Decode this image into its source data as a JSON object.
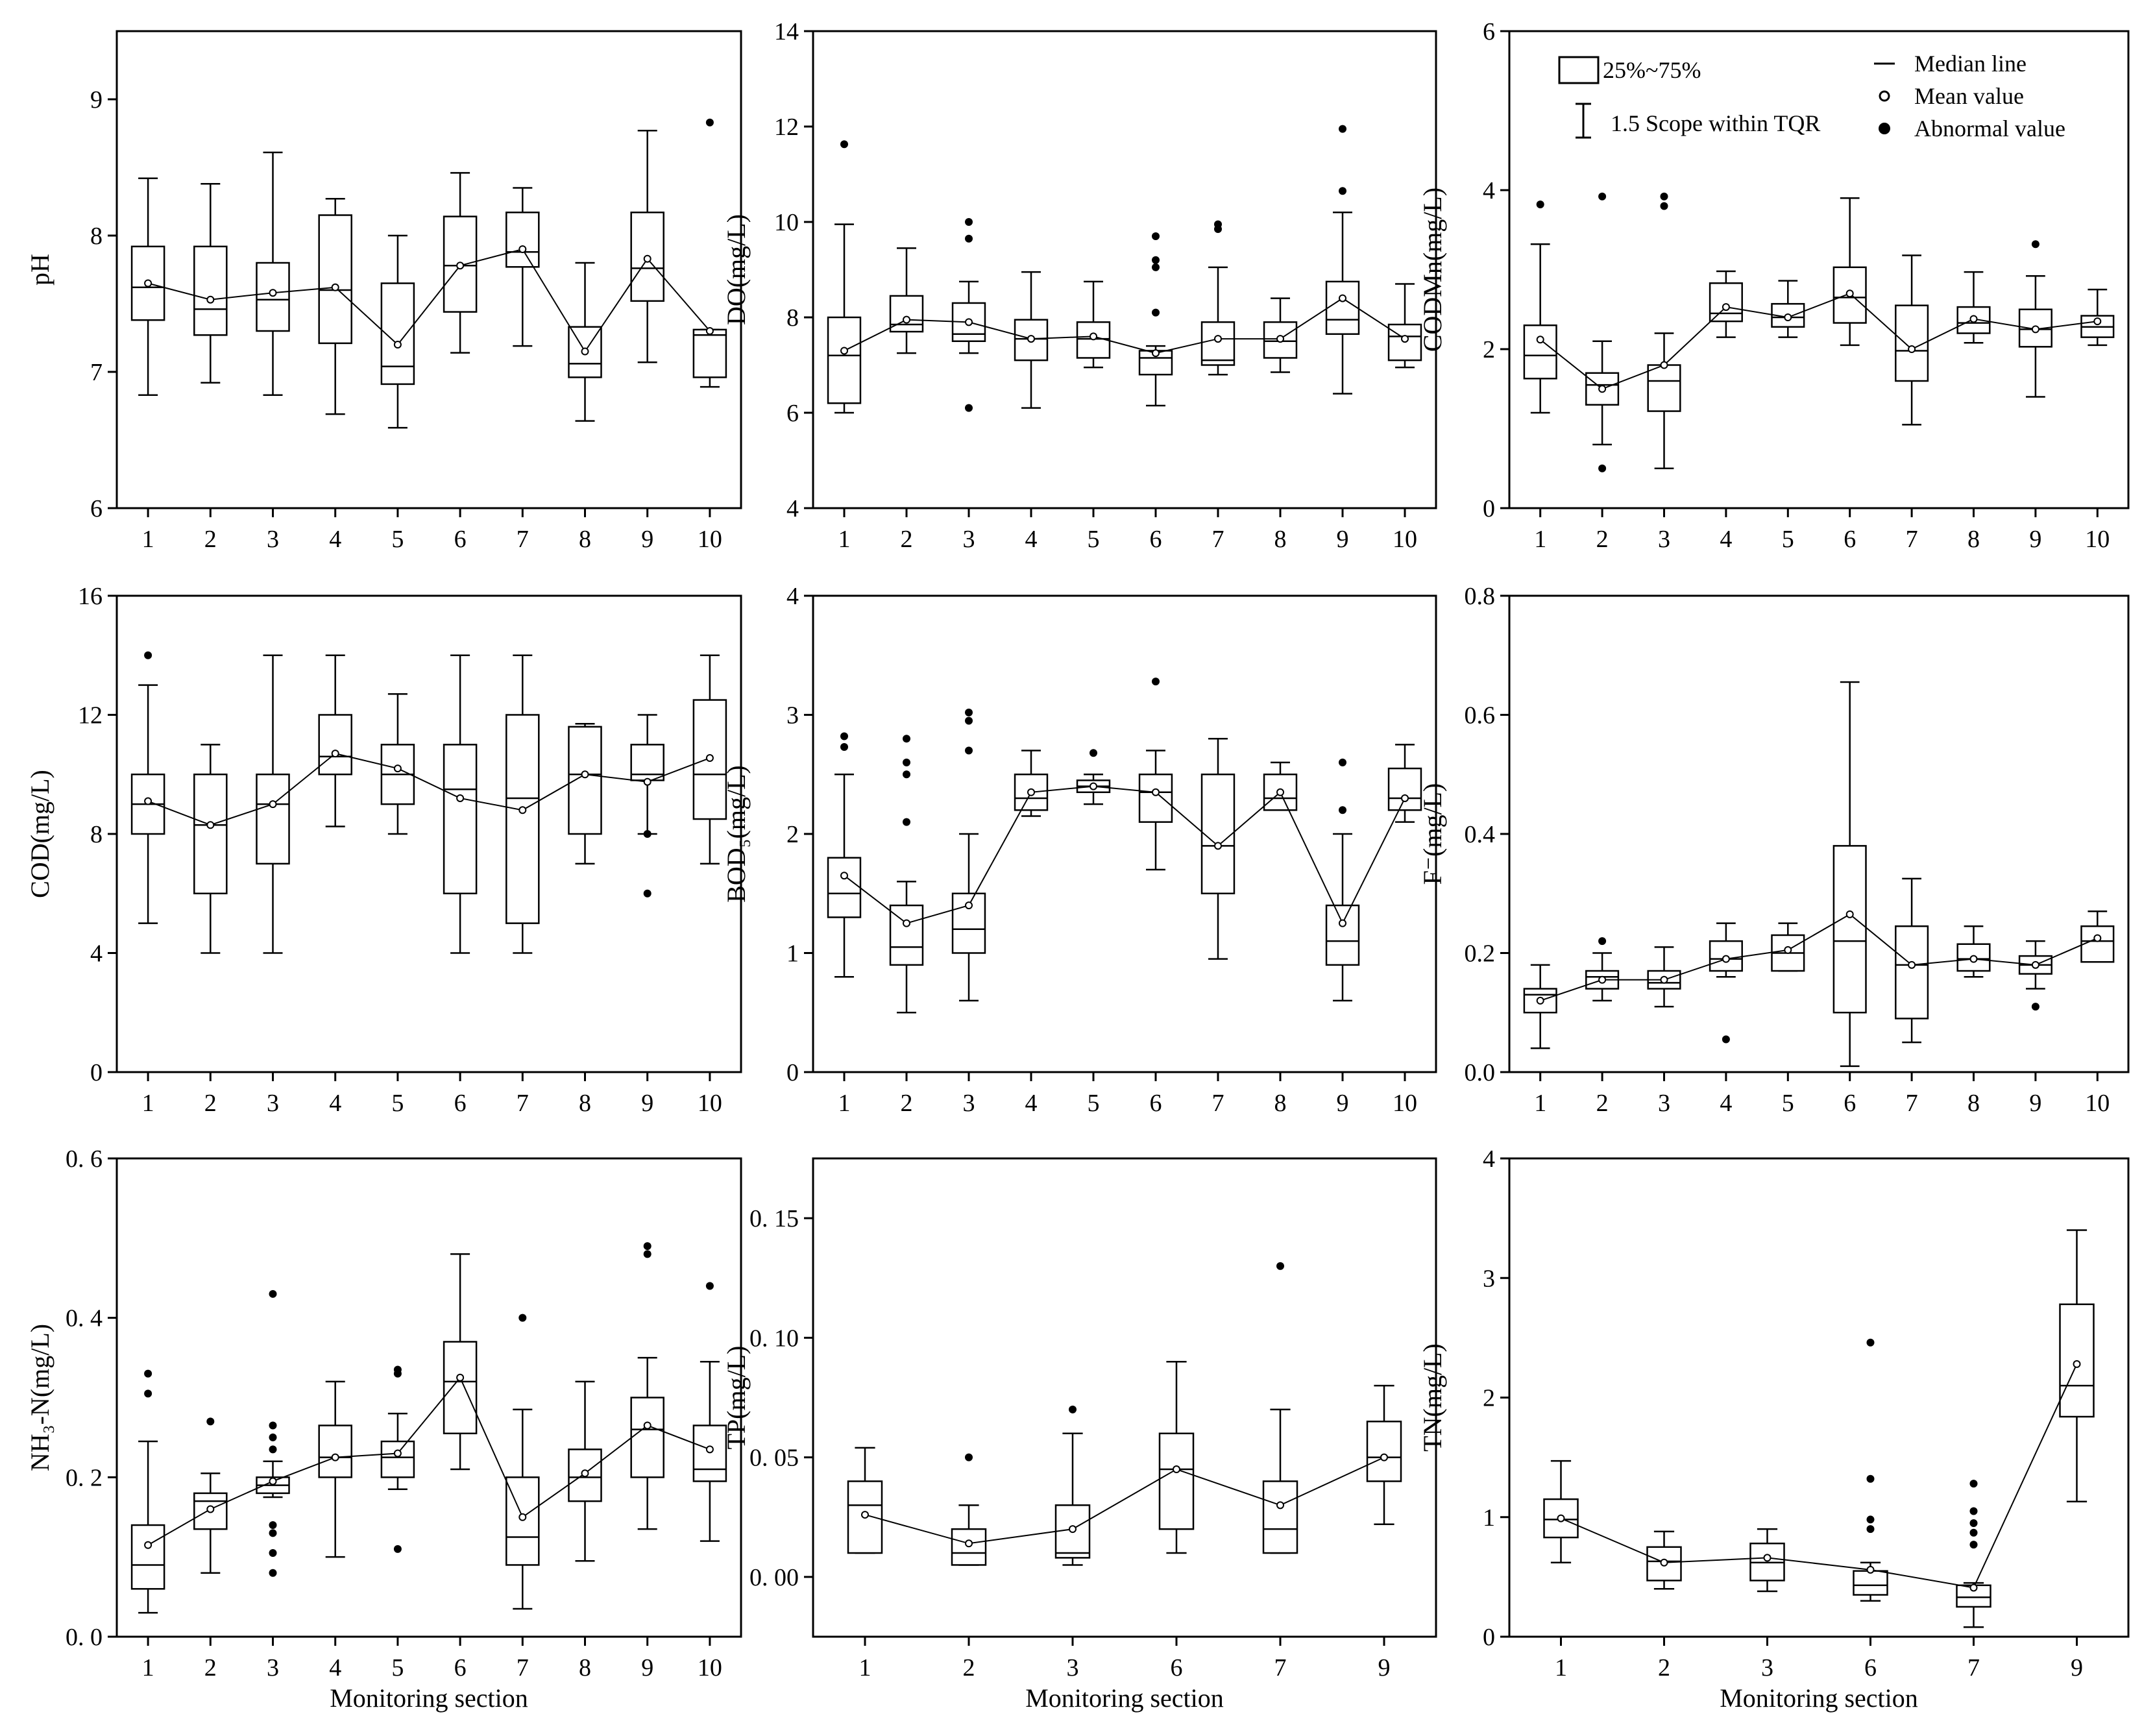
{
  "legend": {
    "box_label": "25%~75%",
    "whisker_label": "1.5 Scope within TQR",
    "median_label": "Median line",
    "mean_label": "Mean value",
    "outlier_label": "Abnormal value"
  },
  "chart_data": [
    {
      "type": "box",
      "ylabel": "pH",
      "xlabel": "",
      "ylim": [
        6,
        9.5
      ],
      "yticks": [
        6,
        7,
        8,
        9
      ],
      "ytick_format": "int",
      "categories": [
        "1",
        "2",
        "3",
        "4",
        "5",
        "6",
        "7",
        "8",
        "9",
        "10"
      ],
      "boxes": [
        {
          "lo": 6.83,
          "q1": 7.38,
          "med": 7.62,
          "q3": 7.92,
          "hi": 8.42,
          "mean": 7.65,
          "out": []
        },
        {
          "lo": 6.92,
          "q1": 7.27,
          "med": 7.46,
          "q3": 7.92,
          "hi": 8.38,
          "mean": 7.53,
          "out": []
        },
        {
          "lo": 6.83,
          "q1": 7.3,
          "med": 7.53,
          "q3": 7.8,
          "hi": 8.61,
          "mean": 7.58,
          "out": []
        },
        {
          "lo": 6.69,
          "q1": 7.21,
          "med": 7.6,
          "q3": 8.15,
          "hi": 8.27,
          "mean": 7.62,
          "out": []
        },
        {
          "lo": 6.59,
          "q1": 6.91,
          "med": 7.04,
          "q3": 7.65,
          "hi": 8.0,
          "mean": 7.2,
          "out": []
        },
        {
          "lo": 7.14,
          "q1": 7.44,
          "med": 7.78,
          "q3": 8.14,
          "hi": 8.46,
          "mean": 7.78,
          "out": []
        },
        {
          "lo": 7.19,
          "q1": 7.77,
          "med": 7.88,
          "q3": 8.17,
          "hi": 8.35,
          "mean": 7.9,
          "out": []
        },
        {
          "lo": 6.64,
          "q1": 6.96,
          "med": 7.06,
          "q3": 7.33,
          "hi": 7.8,
          "mean": 7.15,
          "out": []
        },
        {
          "lo": 7.07,
          "q1": 7.52,
          "med": 7.76,
          "q3": 8.17,
          "hi": 8.77,
          "mean": 7.83,
          "out": []
        },
        {
          "lo": 6.89,
          "q1": 6.96,
          "med": 7.27,
          "q3": 7.31,
          "hi": 7.31,
          "mean": 7.3,
          "out": [
            8.83
          ]
        }
      ]
    },
    {
      "type": "box",
      "ylabel": "DO(mg/L)",
      "xlabel": "",
      "ylim": [
        4,
        14
      ],
      "yticks": [
        4,
        6,
        8,
        10,
        12,
        14
      ],
      "ytick_format": "int",
      "categories": [
        "1",
        "2",
        "3",
        "4",
        "5",
        "6",
        "7",
        "8",
        "9",
        "10"
      ],
      "boxes": [
        {
          "lo": 6.0,
          "q1": 6.2,
          "med": 7.2,
          "q3": 8.0,
          "hi": 9.95,
          "mean": 7.3,
          "out": [
            11.63
          ]
        },
        {
          "lo": 7.25,
          "q1": 7.7,
          "med": 7.85,
          "q3": 8.45,
          "hi": 9.45,
          "mean": 7.95,
          "out": []
        },
        {
          "lo": 7.25,
          "q1": 7.5,
          "med": 7.65,
          "q3": 8.3,
          "hi": 8.75,
          "mean": 7.9,
          "out": [
            6.1,
            9.65,
            10.0
          ]
        },
        {
          "lo": 6.1,
          "q1": 7.1,
          "med": 7.55,
          "q3": 7.95,
          "hi": 8.95,
          "mean": 7.55,
          "out": []
        },
        {
          "lo": 6.95,
          "q1": 7.15,
          "med": 7.55,
          "q3": 7.9,
          "hi": 8.75,
          "mean": 7.6,
          "out": []
        },
        {
          "lo": 6.15,
          "q1": 6.8,
          "med": 7.15,
          "q3": 7.3,
          "hi": 7.4,
          "mean": 7.25,
          "out": [
            8.1,
            9.05,
            9.2,
            9.7
          ]
        },
        {
          "lo": 6.8,
          "q1": 7.0,
          "med": 7.1,
          "q3": 7.9,
          "hi": 9.05,
          "mean": 7.55,
          "out": [
            9.85,
            9.95
          ]
        },
        {
          "lo": 6.85,
          "q1": 7.15,
          "med": 7.5,
          "q3": 7.9,
          "hi": 8.4,
          "mean": 7.55,
          "out": []
        },
        {
          "lo": 6.4,
          "q1": 7.65,
          "med": 7.95,
          "q3": 8.75,
          "hi": 10.2,
          "mean": 8.4,
          "out": [
            10.65,
            11.95
          ]
        },
        {
          "lo": 6.95,
          "q1": 7.1,
          "med": 7.6,
          "q3": 7.85,
          "hi": 8.7,
          "mean": 7.55,
          "out": []
        }
      ]
    },
    {
      "type": "box",
      "ylabel": "CODMn(mg/L)",
      "xlabel": "",
      "ylim": [
        0,
        6
      ],
      "yticks": [
        0,
        2,
        4,
        6
      ],
      "ytick_format": "int",
      "categories": [
        "1",
        "2",
        "3",
        "4",
        "5",
        "6",
        "7",
        "8",
        "9",
        "10"
      ],
      "boxes": [
        {
          "lo": 1.2,
          "q1": 1.63,
          "med": 1.92,
          "q3": 2.3,
          "hi": 3.32,
          "mean": 2.12,
          "out": [
            3.82
          ]
        },
        {
          "lo": 0.8,
          "q1": 1.3,
          "med": 1.55,
          "q3": 1.7,
          "hi": 2.1,
          "mean": 1.5,
          "out": [
            0.5,
            3.92
          ]
        },
        {
          "lo": 0.5,
          "q1": 1.22,
          "med": 1.6,
          "q3": 1.8,
          "hi": 2.2,
          "mean": 1.8,
          "out": [
            3.8,
            3.92
          ]
        },
        {
          "lo": 2.15,
          "q1": 2.35,
          "med": 2.45,
          "q3": 2.83,
          "hi": 2.98,
          "mean": 2.53,
          "out": []
        },
        {
          "lo": 2.15,
          "q1": 2.28,
          "med": 2.4,
          "q3": 2.57,
          "hi": 2.86,
          "mean": 2.4,
          "out": []
        },
        {
          "lo": 2.05,
          "q1": 2.33,
          "med": 2.65,
          "q3": 3.03,
          "hi": 3.9,
          "mean": 2.7,
          "out": []
        },
        {
          "lo": 1.05,
          "q1": 1.6,
          "med": 1.98,
          "q3": 2.55,
          "hi": 3.18,
          "mean": 2.0,
          "out": []
        },
        {
          "lo": 2.08,
          "q1": 2.2,
          "med": 2.33,
          "q3": 2.53,
          "hi": 2.97,
          "mean": 2.38,
          "out": []
        },
        {
          "lo": 1.4,
          "q1": 2.03,
          "med": 2.25,
          "q3": 2.5,
          "hi": 2.92,
          "mean": 2.25,
          "out": [
            3.32
          ]
        },
        {
          "lo": 2.05,
          "q1": 2.15,
          "med": 2.28,
          "q3": 2.42,
          "hi": 2.75,
          "mean": 2.35,
          "out": []
        }
      ]
    },
    {
      "type": "box",
      "ylabel": "COD(mg/L)",
      "xlabel": "",
      "ylim": [
        0,
        16
      ],
      "yticks": [
        0,
        4,
        8,
        12,
        16
      ],
      "ytick_format": "int",
      "categories": [
        "1",
        "2",
        "3",
        "4",
        "5",
        "6",
        "7",
        "8",
        "9",
        "10"
      ],
      "boxes": [
        {
          "lo": 5.0,
          "q1": 8.0,
          "med": 9.0,
          "q3": 10.0,
          "hi": 13.0,
          "mean": 9.1,
          "out": [
            14.0
          ]
        },
        {
          "lo": 4.0,
          "q1": 6.0,
          "med": 8.3,
          "q3": 10.0,
          "hi": 11.0,
          "mean": 8.3,
          "out": []
        },
        {
          "lo": 4.0,
          "q1": 7.0,
          "med": 9.0,
          "q3": 10.0,
          "hi": 14.0,
          "mean": 9.0,
          "out": []
        },
        {
          "lo": 8.25,
          "q1": 10.0,
          "med": 10.6,
          "q3": 12.0,
          "hi": 14.0,
          "mean": 10.7,
          "out": []
        },
        {
          "lo": 8.0,
          "q1": 9.0,
          "med": 10.0,
          "q3": 11.0,
          "hi": 12.7,
          "mean": 10.2,
          "out": []
        },
        {
          "lo": 4.0,
          "q1": 6.0,
          "med": 9.5,
          "q3": 11.0,
          "hi": 14.0,
          "mean": 9.2,
          "out": []
        },
        {
          "lo": 4.0,
          "q1": 5.0,
          "med": 9.2,
          "q3": 12.0,
          "hi": 14.0,
          "mean": 8.8,
          "out": []
        },
        {
          "lo": 7.0,
          "q1": 8.0,
          "med": 10.0,
          "q3": 11.6,
          "hi": 11.7,
          "mean": 10.0,
          "out": []
        },
        {
          "lo": 8.0,
          "q1": 9.8,
          "med": 10.0,
          "q3": 11.0,
          "hi": 12.0,
          "mean": 9.75,
          "out": [
            6.0,
            8.0
          ]
        },
        {
          "lo": 7.0,
          "q1": 8.5,
          "med": 10.0,
          "q3": 12.5,
          "hi": 14.0,
          "mean": 10.55,
          "out": []
        }
      ]
    },
    {
      "type": "box",
      "ylabel": "BOD₅(mg/L)",
      "xlabel": "",
      "ylim": [
        0,
        4
      ],
      "yticks": [
        0,
        1,
        2,
        3,
        4
      ],
      "ytick_format": "int",
      "categories": [
        "1",
        "2",
        "3",
        "4",
        "5",
        "6",
        "7",
        "8",
        "9",
        "10"
      ],
      "boxes": [
        {
          "lo": 0.8,
          "q1": 1.3,
          "med": 1.5,
          "q3": 1.8,
          "hi": 2.5,
          "mean": 1.65,
          "out": [
            2.73,
            2.82
          ]
        },
        {
          "lo": 0.5,
          "q1": 0.9,
          "med": 1.05,
          "q3": 1.4,
          "hi": 1.6,
          "mean": 1.25,
          "out": [
            2.1,
            2.5,
            2.6,
            2.8
          ]
        },
        {
          "lo": 0.6,
          "q1": 1.0,
          "med": 1.2,
          "q3": 1.5,
          "hi": 2.0,
          "mean": 1.4,
          "out": [
            2.7,
            2.95,
            3.02
          ]
        },
        {
          "lo": 2.15,
          "q1": 2.2,
          "med": 2.3,
          "q3": 2.5,
          "hi": 2.7,
          "mean": 2.35,
          "out": []
        },
        {
          "lo": 2.25,
          "q1": 2.35,
          "med": 2.4,
          "q3": 2.45,
          "hi": 2.5,
          "mean": 2.4,
          "out": [
            2.68
          ]
        },
        {
          "lo": 1.7,
          "q1": 2.1,
          "med": 2.35,
          "q3": 2.5,
          "hi": 2.7,
          "mean": 2.35,
          "out": [
            3.28
          ]
        },
        {
          "lo": 0.95,
          "q1": 1.5,
          "med": 1.9,
          "q3": 2.5,
          "hi": 2.8,
          "mean": 1.9,
          "out": []
        },
        {
          "lo": 2.2,
          "q1": 2.2,
          "med": 2.3,
          "q3": 2.5,
          "hi": 2.6,
          "mean": 2.35,
          "out": []
        },
        {
          "lo": 0.6,
          "q1": 0.9,
          "med": 1.1,
          "q3": 1.4,
          "hi": 2.0,
          "mean": 1.25,
          "out": [
            2.2,
            2.6
          ]
        },
        {
          "lo": 2.1,
          "q1": 2.2,
          "med": 2.3,
          "q3": 2.55,
          "hi": 2.75,
          "mean": 2.3,
          "out": []
        }
      ]
    },
    {
      "type": "box",
      "ylabel": "F⁻(mg/L)",
      "xlabel": "",
      "ylim": [
        0,
        0.8
      ],
      "yticks": [
        0,
        0.2,
        0.4,
        0.6,
        0.8
      ],
      "ytick_format": "1",
      "categories": [
        "1",
        "2",
        "3",
        "4",
        "5",
        "6",
        "7",
        "8",
        "9",
        "10"
      ],
      "boxes": [
        {
          "lo": 0.04,
          "q1": 0.1,
          "med": 0.13,
          "q3": 0.14,
          "hi": 0.18,
          "mean": 0.12,
          "out": []
        },
        {
          "lo": 0.12,
          "q1": 0.14,
          "med": 0.16,
          "q3": 0.17,
          "hi": 0.2,
          "mean": 0.155,
          "out": [
            0.22
          ]
        },
        {
          "lo": 0.11,
          "q1": 0.14,
          "med": 0.15,
          "q3": 0.17,
          "hi": 0.21,
          "mean": 0.155,
          "out": []
        },
        {
          "lo": 0.16,
          "q1": 0.17,
          "med": 0.19,
          "q3": 0.22,
          "hi": 0.25,
          "mean": 0.19,
          "out": [
            0.055
          ]
        },
        {
          "lo": 0.17,
          "q1": 0.17,
          "med": 0.2,
          "q3": 0.23,
          "hi": 0.25,
          "mean": 0.205,
          "out": []
        },
        {
          "lo": 0.01,
          "q1": 0.1,
          "med": 0.22,
          "q3": 0.38,
          "hi": 0.655,
          "mean": 0.265,
          "out": []
        },
        {
          "lo": 0.05,
          "q1": 0.09,
          "med": 0.18,
          "q3": 0.245,
          "hi": 0.325,
          "mean": 0.18,
          "out": []
        },
        {
          "lo": 0.16,
          "q1": 0.17,
          "med": 0.19,
          "q3": 0.215,
          "hi": 0.245,
          "mean": 0.19,
          "out": []
        },
        {
          "lo": 0.14,
          "q1": 0.165,
          "med": 0.18,
          "q3": 0.195,
          "hi": 0.22,
          "mean": 0.18,
          "out": [
            0.11
          ]
        },
        {
          "lo": 0.185,
          "q1": 0.185,
          "med": 0.22,
          "q3": 0.245,
          "hi": 0.27,
          "mean": 0.225,
          "out": []
        }
      ]
    },
    {
      "type": "box",
      "ylabel": "NH₃-N(mg/L)",
      "xlabel": "Monitoring section",
      "ylim": [
        0,
        0.6
      ],
      "yticks": [
        0,
        0.2,
        0.4,
        0.6
      ],
      "ytick_format": "1sp",
      "categories": [
        "1",
        "2",
        "3",
        "4",
        "5",
        "6",
        "7",
        "8",
        "9",
        "10"
      ],
      "boxes": [
        {
          "lo": 0.03,
          "q1": 0.06,
          "med": 0.09,
          "q3": 0.14,
          "hi": 0.245,
          "mean": 0.115,
          "out": [
            0.305,
            0.33
          ]
        },
        {
          "lo": 0.08,
          "q1": 0.135,
          "med": 0.17,
          "q3": 0.18,
          "hi": 0.205,
          "mean": 0.16,
          "out": [
            0.27
          ]
        },
        {
          "lo": 0.175,
          "q1": 0.18,
          "med": 0.19,
          "q3": 0.2,
          "hi": 0.22,
          "mean": 0.195,
          "out": [
            0.08,
            0.105,
            0.13,
            0.14,
            0.235,
            0.25,
            0.265,
            0.43
          ]
        },
        {
          "lo": 0.1,
          "q1": 0.2,
          "med": 0.225,
          "q3": 0.265,
          "hi": 0.32,
          "mean": 0.225,
          "out": []
        },
        {
          "lo": 0.185,
          "q1": 0.2,
          "med": 0.225,
          "q3": 0.245,
          "hi": 0.28,
          "mean": 0.23,
          "out": [
            0.11,
            0.33,
            0.335
          ]
        },
        {
          "lo": 0.21,
          "q1": 0.255,
          "med": 0.32,
          "q3": 0.37,
          "hi": 0.48,
          "mean": 0.325,
          "out": []
        },
        {
          "lo": 0.035,
          "q1": 0.09,
          "med": 0.125,
          "q3": 0.2,
          "hi": 0.285,
          "mean": 0.15,
          "out": [
            0.4
          ]
        },
        {
          "lo": 0.095,
          "q1": 0.17,
          "med": 0.2,
          "q3": 0.235,
          "hi": 0.32,
          "mean": 0.205,
          "out": []
        },
        {
          "lo": 0.135,
          "q1": 0.2,
          "med": 0.26,
          "q3": 0.3,
          "hi": 0.35,
          "mean": 0.265,
          "out": [
            0.48,
            0.49
          ]
        },
        {
          "lo": 0.12,
          "q1": 0.195,
          "med": 0.21,
          "q3": 0.265,
          "hi": 0.345,
          "mean": 0.235,
          "out": [
            0.44
          ]
        }
      ]
    },
    {
      "type": "box",
      "ylabel": "TP(mg/L)",
      "xlabel": "Monitoring section",
      "ylim": [
        -0.025,
        0.175
      ],
      "yticks": [
        0,
        0.05,
        0.1,
        0.15
      ],
      "ytick_format": "2sp",
      "categories": [
        "1",
        "2",
        "3",
        "6",
        "7",
        "9"
      ],
      "boxes": [
        {
          "lo": 0.01,
          "q1": 0.01,
          "med": 0.03,
          "q3": 0.04,
          "hi": 0.054,
          "mean": 0.026,
          "out": []
        },
        {
          "lo": 0.005,
          "q1": 0.005,
          "med": 0.01,
          "q3": 0.02,
          "hi": 0.03,
          "mean": 0.014,
          "out": [
            0.05
          ]
        },
        {
          "lo": 0.005,
          "q1": 0.008,
          "med": 0.01,
          "q3": 0.03,
          "hi": 0.06,
          "mean": 0.02,
          "out": [
            0.07
          ]
        },
        {
          "lo": 0.01,
          "q1": 0.02,
          "med": 0.045,
          "q3": 0.06,
          "hi": 0.09,
          "mean": 0.045,
          "out": []
        },
        {
          "lo": 0.01,
          "q1": 0.01,
          "med": 0.02,
          "q3": 0.04,
          "hi": 0.07,
          "mean": 0.03,
          "out": [
            0.13
          ]
        },
        {
          "lo": 0.022,
          "q1": 0.04,
          "med": 0.05,
          "q3": 0.065,
          "hi": 0.08,
          "mean": 0.05,
          "out": []
        }
      ]
    },
    {
      "type": "box",
      "ylabel": "TN(mg/L)",
      "xlabel": "Monitoring section",
      "ylim": [
        0,
        4
      ],
      "yticks": [
        0,
        1,
        2,
        3,
        4
      ],
      "ytick_format": "int",
      "categories": [
        "1",
        "2",
        "3",
        "6",
        "7",
        "9"
      ],
      "boxes": [
        {
          "lo": 0.62,
          "q1": 0.83,
          "med": 0.98,
          "q3": 1.15,
          "hi": 1.47,
          "mean": 0.99,
          "out": []
        },
        {
          "lo": 0.4,
          "q1": 0.47,
          "med": 0.63,
          "q3": 0.75,
          "hi": 0.88,
          "mean": 0.62,
          "out": []
        },
        {
          "lo": 0.38,
          "q1": 0.47,
          "med": 0.62,
          "q3": 0.78,
          "hi": 0.9,
          "mean": 0.66,
          "out": []
        },
        {
          "lo": 0.3,
          "q1": 0.35,
          "med": 0.43,
          "q3": 0.55,
          "hi": 0.62,
          "mean": 0.56,
          "out": [
            0.9,
            0.98,
            1.32,
            2.46
          ]
        },
        {
          "lo": 0.08,
          "q1": 0.25,
          "med": 0.33,
          "q3": 0.43,
          "hi": 0.45,
          "mean": 0.41,
          "out": [
            0.77,
            0.87,
            0.95,
            1.05,
            1.28
          ]
        },
        {
          "lo": 1.13,
          "q1": 1.84,
          "med": 2.1,
          "q3": 2.78,
          "hi": 3.4,
          "mean": 2.28,
          "out": []
        }
      ]
    }
  ]
}
